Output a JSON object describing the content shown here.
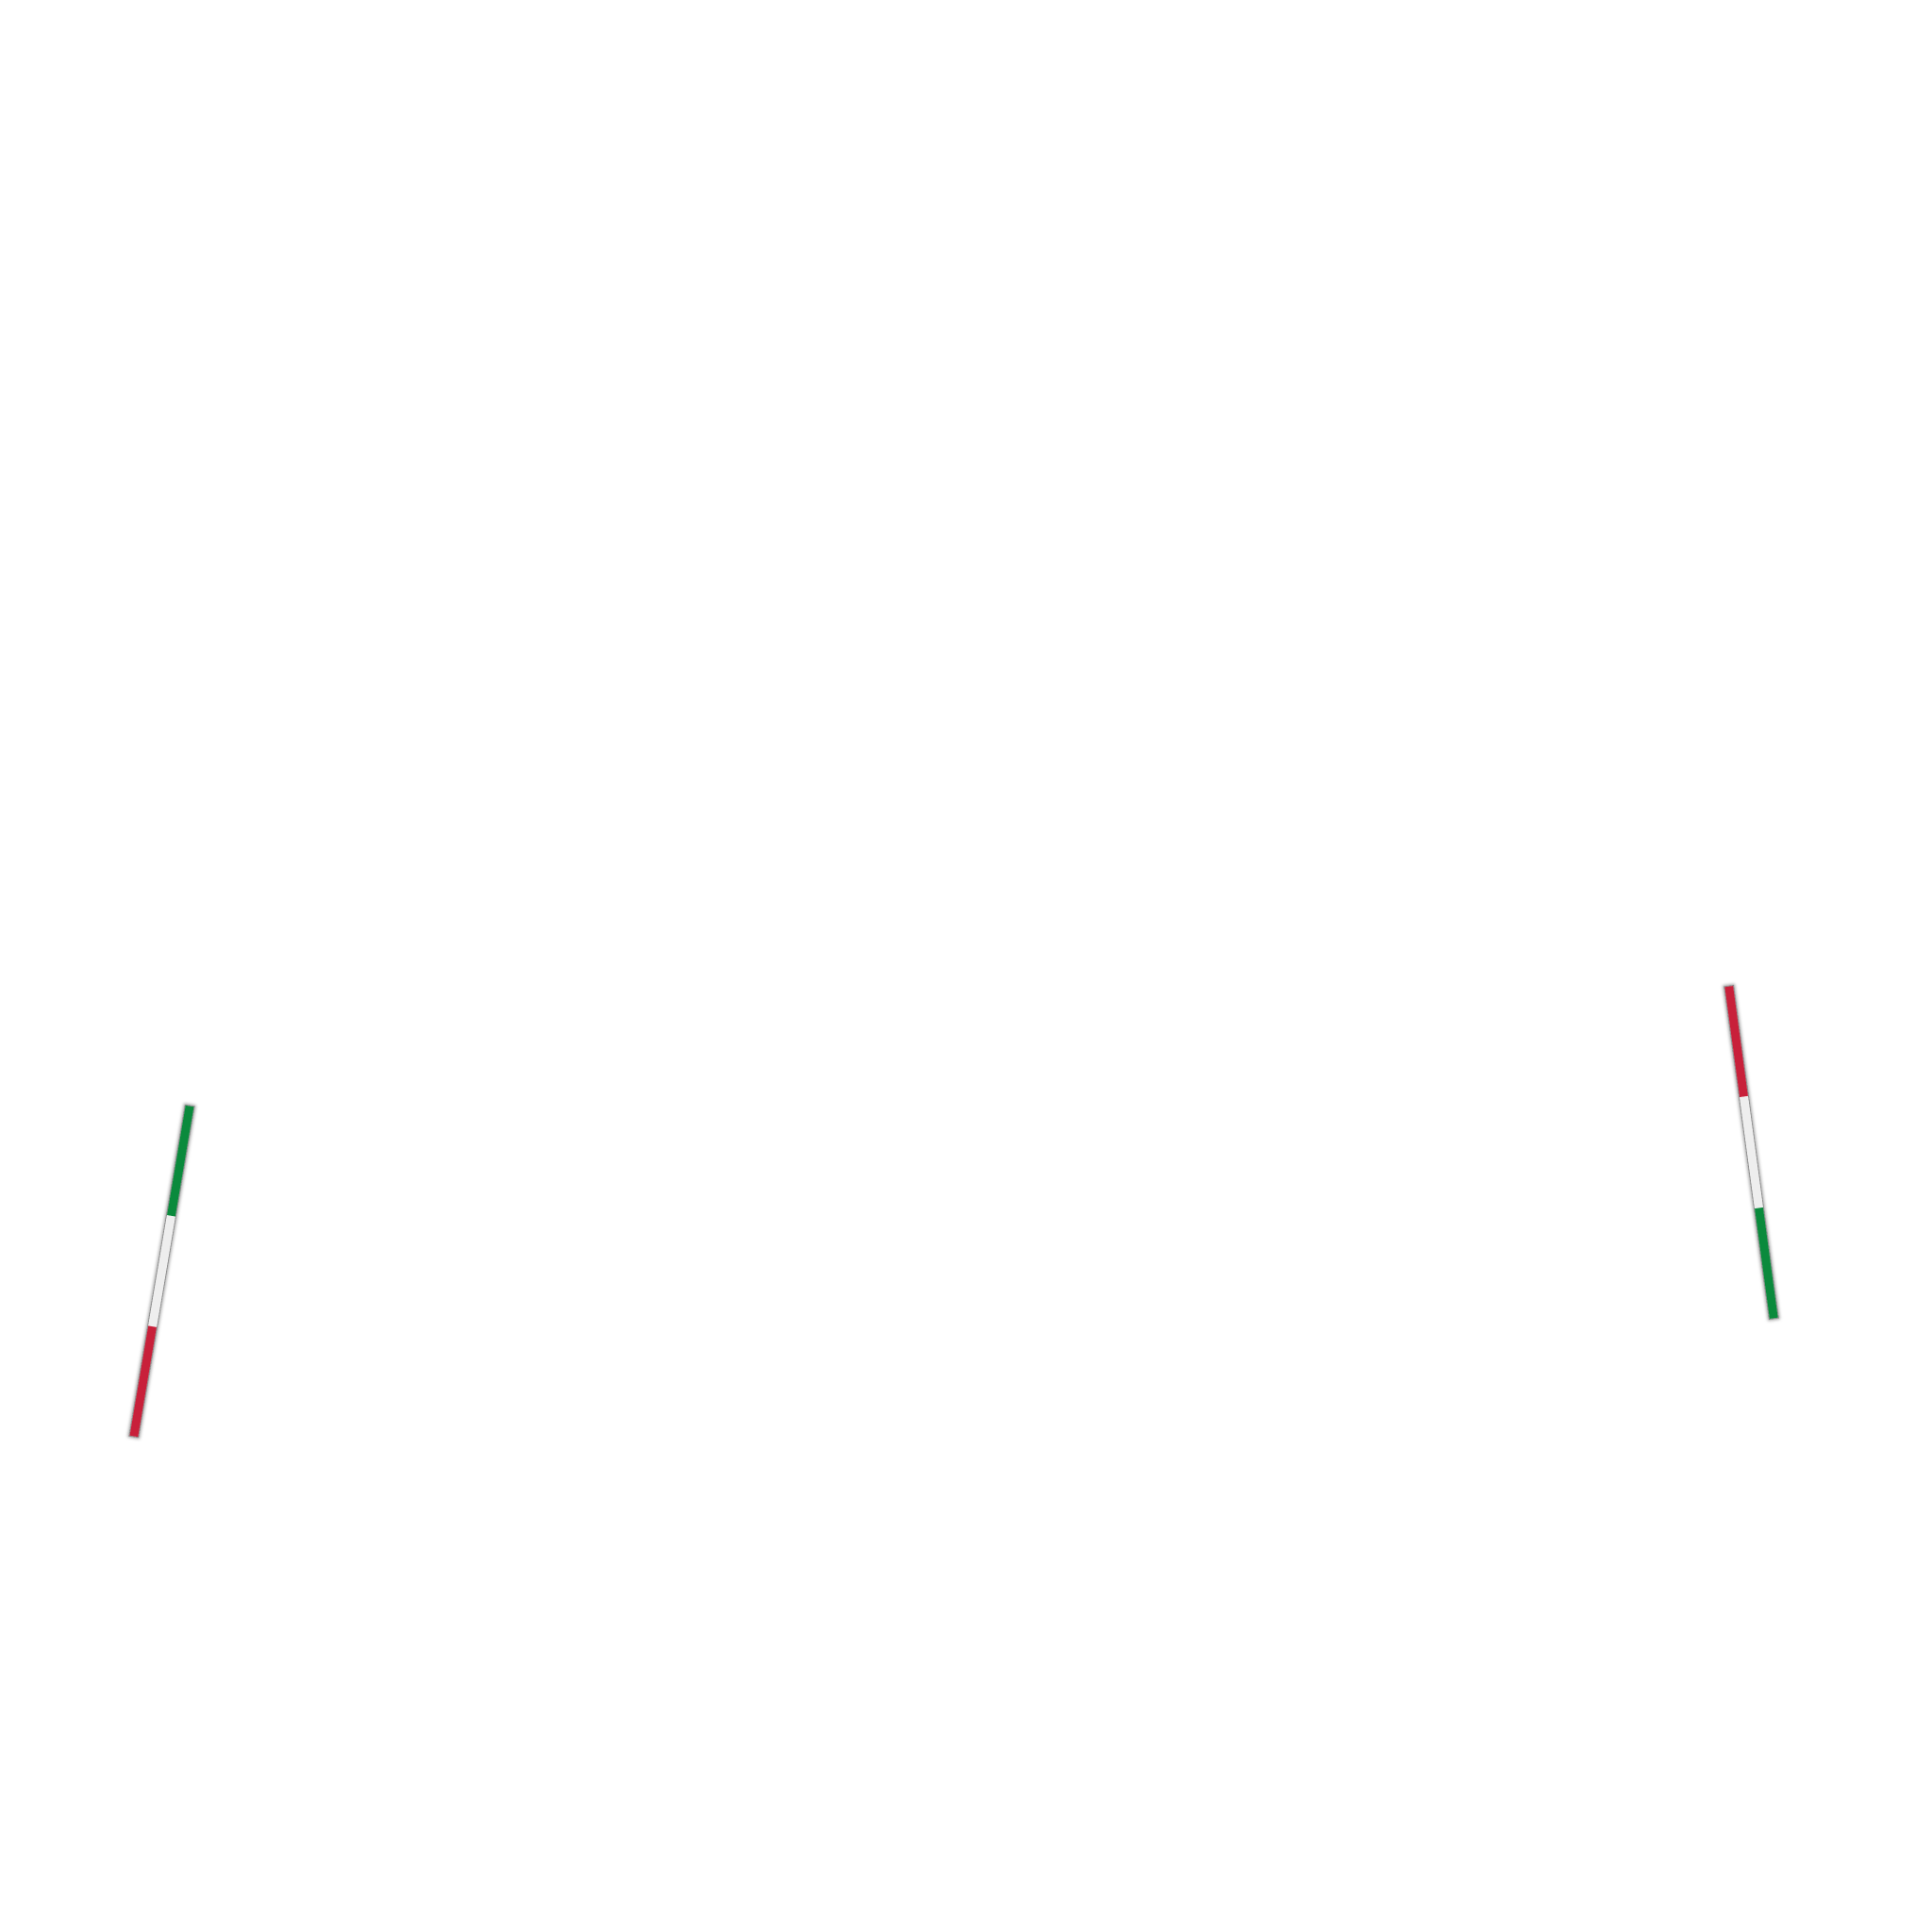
{
  "colors": {
    "green": "#0a8a3c",
    "white": "#eeeeee",
    "red": "#c8203a"
  },
  "bars": [
    {
      "id": "left",
      "segments_top_to_bottom": [
        "green",
        "white",
        "red"
      ]
    },
    {
      "id": "right",
      "segments_top_to_bottom": [
        "red",
        "white",
        "green"
      ]
    }
  ]
}
